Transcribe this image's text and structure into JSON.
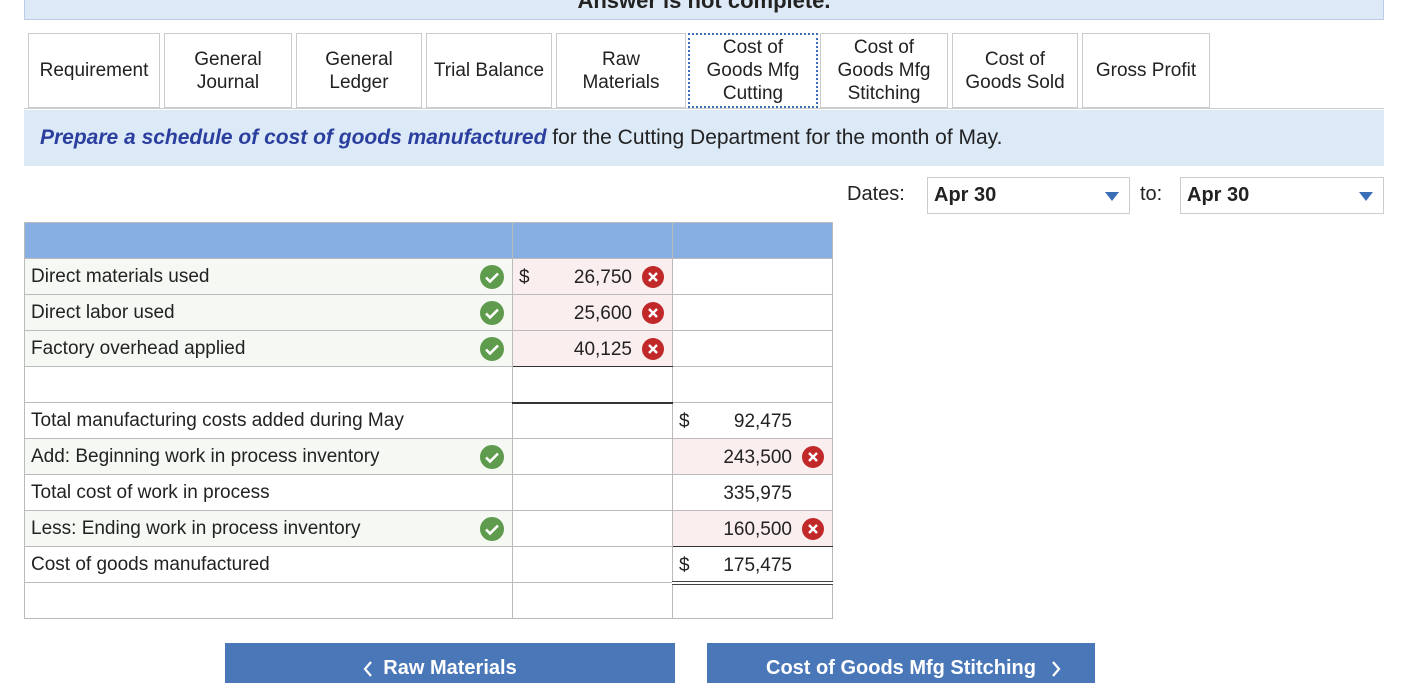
{
  "banner": "Answer is not complete.",
  "tabs": [
    "Requirement",
    "General Journal",
    "General Ledger",
    "Trial Balance",
    "Raw Materials",
    "Cost of Goods Mfg Cutting",
    "Cost of Goods Mfg Stitching",
    "Cost of Goods Sold",
    "Gross Profit"
  ],
  "instruction": {
    "emphasis": "Prepare a schedule of cost of goods manufactured",
    "rest": " for the Cutting Department for the month of May."
  },
  "dates": {
    "label": "Dates:",
    "from": "Apr 30",
    "to_label": "to:",
    "to": "Apr 30"
  },
  "table": {
    "rows": [
      {
        "label": "Direct materials used",
        "currency": "$",
        "amount": "26,750"
      },
      {
        "label": "Direct labor used",
        "amount": "25,600"
      },
      {
        "label": "Factory overhead applied",
        "amount": "40,125"
      },
      {
        "label": "Total manufacturing costs added during May",
        "currency": "$",
        "total": "92,475"
      },
      {
        "label": "Add: Beginning work in process inventory",
        "total": "243,500"
      },
      {
        "label": "Total cost of work in process",
        "total": "335,975"
      },
      {
        "label": "Less: Ending work in process inventory",
        "total": "160,500"
      },
      {
        "label": "Cost of goods manufactured",
        "currency": "$",
        "total": "175,475"
      }
    ]
  },
  "nav": {
    "prev": "Raw Materials",
    "next": "Cost of Goods Mfg Stitching"
  }
}
